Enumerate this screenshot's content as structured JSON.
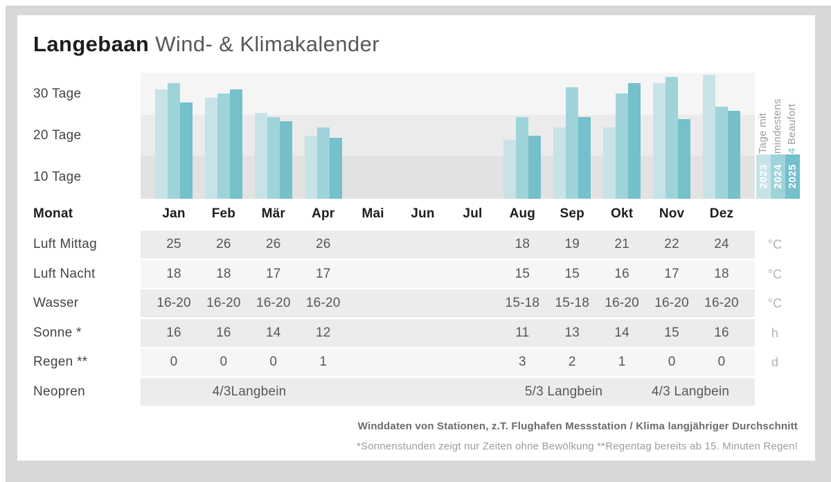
{
  "title": {
    "brand": "Langebaan",
    "rest": " Wind- & Klimakalender"
  },
  "chart_data": {
    "type": "bar",
    "title": "Tage mit mindestens 4 Beaufort",
    "categories": [
      "Jan",
      "Feb",
      "Mär",
      "Apr",
      "Mai",
      "Jun",
      "Jul",
      "Aug",
      "Sep",
      "Okt",
      "Nov",
      "Dez"
    ],
    "series": [
      {
        "name": "2023",
        "color": "#c7e3e8",
        "values": [
          31,
          29,
          25.5,
          20,
          0,
          0,
          0,
          19,
          22,
          22,
          32.5,
          34.5
        ]
      },
      {
        "name": "2024",
        "color": "#9fd3da",
        "values": [
          32.5,
          30,
          24.5,
          22,
          0,
          0,
          0,
          24.5,
          31.5,
          30,
          34,
          27
        ]
      },
      {
        "name": "2025",
        "color": "#74c0cb",
        "values": [
          28,
          31,
          23.5,
          19.5,
          0,
          0,
          0,
          20,
          24.5,
          32.5,
          24,
          26
        ]
      }
    ],
    "ylabel": "Tage",
    "ylim": [
      5,
      35
    ],
    "y_tick_labels": [
      "30 Tage",
      "20 Tage",
      "10 Tage"
    ],
    "grid": "banded",
    "legend_position": "right",
    "legend_title_lines": [
      "Tage mit",
      "mindestens",
      "4 Beaufort"
    ],
    "legend_entries": [
      "2023",
      "2024",
      "2025"
    ]
  },
  "table": {
    "month_header_label": "Monat",
    "rows": [
      {
        "label": "Luft Mittag",
        "unit": "°C",
        "bg": "#ececec",
        "values": [
          "25",
          "26",
          "26",
          "26",
          "",
          "",
          "",
          "18",
          "19",
          "21",
          "22",
          "24"
        ]
      },
      {
        "label": "Luft Nacht",
        "unit": "°C",
        "bg": "#f6f6f6",
        "values": [
          "18",
          "18",
          "17",
          "17",
          "",
          "",
          "",
          "15",
          "15",
          "16",
          "17",
          "18"
        ]
      },
      {
        "label": "Wasser",
        "unit": "°C",
        "bg": "#ececec",
        "values": [
          "16-20",
          "16-20",
          "16-20",
          "16-20",
          "",
          "",
          "",
          "15-18",
          "15-18",
          "16-20",
          "16-20",
          "16-20"
        ]
      },
      {
        "label": "Sonne *",
        "unit": "h",
        "bg": "#ececec",
        "values": [
          "16",
          "16",
          "14",
          "12",
          "",
          "",
          "",
          "11",
          "13",
          "14",
          "15",
          "16"
        ]
      },
      {
        "label": "Regen **",
        "unit": "d",
        "bg": "#f6f6f6",
        "values": [
          "0",
          "0",
          "0",
          "1",
          "",
          "",
          "",
          "3",
          "2",
          "1",
          "0",
          "0"
        ]
      }
    ],
    "neopren": {
      "label": "Neopren",
      "bg": "#ececec",
      "spans": [
        "4/3Langbein",
        "5/3 Langbein",
        "4/3 Langbein"
      ]
    }
  },
  "footer": {
    "line1": "Winddaten von Stationen, z.T. Flughafen Messstation / Klima langjähriger Durchschnitt",
    "line2": "*Sonnenstunden zeigt nur Zeiten ohne Bewölkung  **Regentag bereits ab 15. Minuten Regen!"
  }
}
